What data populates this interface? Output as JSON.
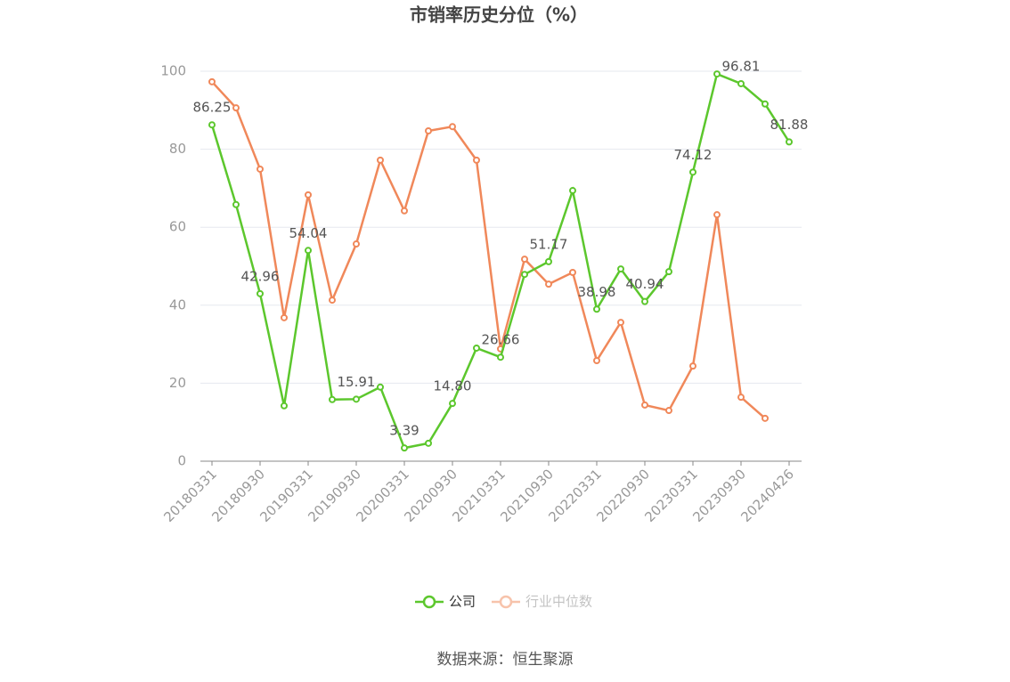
{
  "chart_data": {
    "type": "line",
    "title": "市销率历史分位（%）",
    "categories": [
      "20180331",
      null,
      "20180930",
      null,
      "20190331",
      null,
      "20190930",
      null,
      "20200331",
      null,
      "20200930",
      null,
      "20210331",
      null,
      "20210930",
      null,
      "20220331",
      null,
      "20220930",
      null,
      "20230331",
      null,
      "20230930",
      null,
      "20240426"
    ],
    "series": [
      {
        "name": "公司",
        "color": "#5cc72d",
        "values": [
          86.25,
          65.8,
          42.96,
          14.2,
          54.04,
          15.8,
          15.91,
          19.0,
          3.39,
          4.6,
          14.8,
          29.0,
          26.66,
          47.9,
          51.17,
          69.4,
          38.98,
          49.3,
          40.94,
          48.6,
          74.12,
          99.3,
          96.81,
          91.6,
          81.88
        ],
        "value_labels": [
          "86.25",
          null,
          "42.96",
          null,
          "54.04",
          null,
          "15.91",
          null,
          "3.39",
          null,
          "14.80",
          null,
          "26.66",
          null,
          "51.17",
          null,
          "38.98",
          null,
          "40.94",
          null,
          "74.12",
          null,
          "96.81",
          null,
          "81.88"
        ]
      },
      {
        "name": "行业中位数",
        "color": "#f0885a",
        "values": [
          97.3,
          90.6,
          74.9,
          36.8,
          68.3,
          41.3,
          55.7,
          77.2,
          64.2,
          84.7,
          85.8,
          77.2,
          28.8,
          51.8,
          45.4,
          48.4,
          25.8,
          35.6,
          14.4,
          13.0,
          24.4,
          63.2,
          16.4,
          11.0,
          null
        ]
      }
    ],
    "ylim": [
      0,
      100
    ],
    "yticks": [
      0,
      20,
      40,
      60,
      80,
      100
    ],
    "grid": true,
    "source": "数据来源：恒生聚源"
  }
}
